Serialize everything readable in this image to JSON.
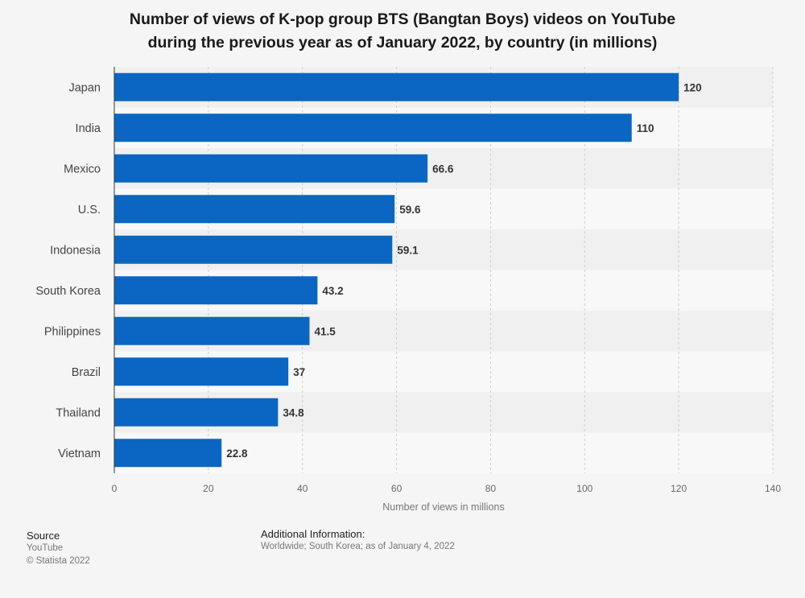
{
  "title": {
    "line1": "Number of views of K-pop group BTS (Bangtan Boys) videos on YouTube",
    "line2": "during the previous year as of January 2022, by country (in millions)"
  },
  "chart_data": {
    "type": "bar",
    "orientation": "horizontal",
    "categories": [
      "Japan",
      "India",
      "Mexico",
      "U.S.",
      "Indonesia",
      "South Korea",
      "Philippines",
      "Brazil",
      "Thailand",
      "Vietnam"
    ],
    "values": [
      120,
      110,
      66.6,
      59.6,
      59.1,
      43.2,
      41.5,
      37,
      34.8,
      22.8
    ],
    "value_labels": [
      "120",
      "110",
      "66.6",
      "59.6",
      "59.1",
      "43.2",
      "41.5",
      "37",
      "34.8",
      "22.8"
    ],
    "xlabel": "Number of views in millions",
    "xlim": [
      0,
      140
    ],
    "xticks": [
      0,
      20,
      40,
      60,
      80,
      100,
      120,
      140
    ],
    "grid": true,
    "bar_color": "#0a66c2"
  },
  "footer": {
    "source_label": "Source",
    "source_lines": [
      "YouTube",
      "© Statista 2022"
    ],
    "info_label": "Additional Information:",
    "info_text": "Worldwide; South Korea; as of January 4, 2022"
  }
}
